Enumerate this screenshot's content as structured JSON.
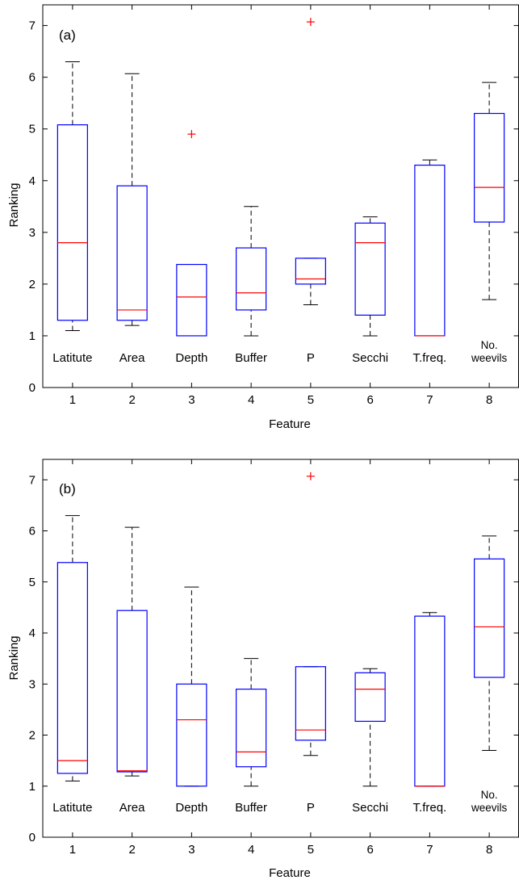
{
  "chart_data": [
    {
      "type": "box",
      "panel_label": "(a)",
      "xlabel": "Feature",
      "ylabel": "Ranking",
      "xlim": [
        0.5,
        8.5
      ],
      "ylim": [
        0,
        7.4
      ],
      "x_ticks": [
        "1",
        "2",
        "3",
        "4",
        "5",
        "6",
        "7",
        "8"
      ],
      "y_ticks": [
        "0",
        "1",
        "2",
        "3",
        "4",
        "5",
        "6",
        "7"
      ],
      "feature_labels": [
        [
          "Latitute"
        ],
        [
          "Area"
        ],
        [
          "Depth"
        ],
        [
          "Buffer"
        ],
        [
          "P"
        ],
        [
          "Secchi"
        ],
        [
          "T.freq."
        ],
        [
          "No.",
          "weevils"
        ]
      ],
      "boxes": [
        {
          "x": 1,
          "whisker_low": 1.1,
          "q1": 1.3,
          "median": 2.8,
          "q3": 5.08,
          "whisker_high": 6.3,
          "outliers": []
        },
        {
          "x": 2,
          "whisker_low": 1.2,
          "q1": 1.3,
          "median": 1.5,
          "q3": 3.9,
          "whisker_high": 6.07,
          "outliers": []
        },
        {
          "x": 3,
          "whisker_low": 1.0,
          "q1": 1.0,
          "median": 1.75,
          "q3": 2.38,
          "whisker_high": 2.38,
          "outliers": [
            4.9
          ]
        },
        {
          "x": 4,
          "whisker_low": 1.0,
          "q1": 1.5,
          "median": 1.83,
          "q3": 2.7,
          "whisker_high": 3.5,
          "outliers": []
        },
        {
          "x": 5,
          "whisker_low": 1.6,
          "q1": 2.0,
          "median": 2.1,
          "q3": 2.5,
          "whisker_high": 2.5,
          "outliers": [
            7.07
          ]
        },
        {
          "x": 6,
          "whisker_low": 1.0,
          "q1": 1.4,
          "median": 2.8,
          "q3": 3.18,
          "whisker_high": 3.3,
          "outliers": []
        },
        {
          "x": 7,
          "whisker_low": 1.0,
          "q1": 1.0,
          "median": 1.0,
          "q3": 4.3,
          "whisker_high": 4.4,
          "outliers": []
        },
        {
          "x": 8,
          "whisker_low": 1.7,
          "q1": 3.2,
          "median": 3.87,
          "q3": 5.3,
          "whisker_high": 5.9,
          "outliers": []
        }
      ],
      "colors": {
        "box": "#0000ff",
        "median": "#ff0000",
        "whisker": "#000000",
        "outlier": "#ff0000"
      }
    },
    {
      "type": "box",
      "panel_label": "(b)",
      "xlabel": "Feature",
      "ylabel": "Ranking",
      "xlim": [
        0.5,
        8.5
      ],
      "ylim": [
        0,
        7.4
      ],
      "x_ticks": [
        "1",
        "2",
        "3",
        "4",
        "5",
        "6",
        "7",
        "8"
      ],
      "y_ticks": [
        "0",
        "1",
        "2",
        "3",
        "4",
        "5",
        "6",
        "7"
      ],
      "feature_labels": [
        [
          "Latitute"
        ],
        [
          "Area"
        ],
        [
          "Depth"
        ],
        [
          "Buffer"
        ],
        [
          "P"
        ],
        [
          "Secchi"
        ],
        [
          "T.freq."
        ],
        [
          "No.",
          "weevils"
        ]
      ],
      "boxes": [
        {
          "x": 1,
          "whisker_low": 1.1,
          "q1": 1.25,
          "median": 1.5,
          "q3": 5.38,
          "whisker_high": 6.3,
          "outliers": []
        },
        {
          "x": 2,
          "whisker_low": 1.2,
          "q1": 1.28,
          "median": 1.3,
          "q3": 4.44,
          "whisker_high": 6.07,
          "outliers": []
        },
        {
          "x": 3,
          "whisker_low": 1.0,
          "q1": 1.0,
          "median": 2.3,
          "q3": 3.0,
          "whisker_high": 4.9,
          "outliers": []
        },
        {
          "x": 4,
          "whisker_low": 1.0,
          "q1": 1.38,
          "median": 1.67,
          "q3": 2.9,
          "whisker_high": 3.5,
          "outliers": []
        },
        {
          "x": 5,
          "whisker_low": 1.6,
          "q1": 1.9,
          "median": 2.1,
          "q3": 3.34,
          "whisker_high": 3.34,
          "outliers": [
            7.07
          ]
        },
        {
          "x": 6,
          "whisker_low": 1.0,
          "q1": 2.27,
          "median": 2.9,
          "q3": 3.22,
          "whisker_high": 3.3,
          "outliers": []
        },
        {
          "x": 7,
          "whisker_low": 1.0,
          "q1": 1.0,
          "median": 1.0,
          "q3": 4.33,
          "whisker_high": 4.4,
          "outliers": []
        },
        {
          "x": 8,
          "whisker_low": 1.7,
          "q1": 3.13,
          "median": 4.12,
          "q3": 5.45,
          "whisker_high": 5.9,
          "outliers": []
        }
      ],
      "colors": {
        "box": "#0000ff",
        "median": "#ff0000",
        "whisker": "#000000",
        "outlier": "#ff0000"
      }
    }
  ]
}
